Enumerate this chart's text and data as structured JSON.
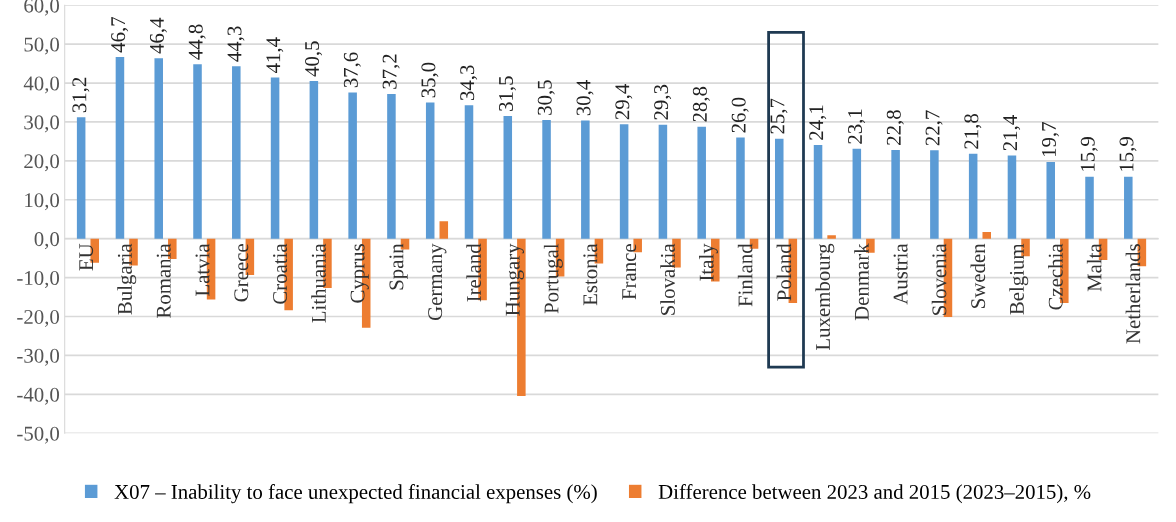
{
  "chart_data": {
    "type": "bar",
    "categories": [
      "EU",
      "Bulgaria",
      "Romania",
      "Latvia",
      "Greece",
      "Croatia",
      "Lithuania",
      "Cyprus",
      "Spain",
      "Germany",
      "Ireland",
      "Hungary",
      "Portugal",
      "Estonia",
      "France",
      "Slovakia",
      "Italy",
      "Finland",
      "Poland",
      "Luxembourg",
      "Denmark",
      "Austria",
      "Slovenia",
      "Sweden",
      "Belgium",
      "Czechia",
      "Malta",
      "Netherlands"
    ],
    "series": [
      {
        "name": "X07 – Inability to face unexpected financial expenses (%)",
        "color": "#5b9bd5",
        "values": [
          31.2,
          46.7,
          46.4,
          44.8,
          44.3,
          41.4,
          40.5,
          37.6,
          37.2,
          35.0,
          34.3,
          31.5,
          30.5,
          30.4,
          29.4,
          29.3,
          28.8,
          26.0,
          25.7,
          24.1,
          23.1,
          22.8,
          22.7,
          21.8,
          21.4,
          19.7,
          15.9,
          15.9
        ],
        "value_labels": [
          "31,2",
          "46,7",
          "46,4",
          "44,8",
          "44,3",
          "41,4",
          "40,5",
          "37,6",
          "37,2",
          "35,0",
          "34,3",
          "31,5",
          "30,5",
          "30,4",
          "29,4",
          "29,3",
          "28,8",
          "26,0",
          "25,7",
          "24,1",
          "23,1",
          "22,8",
          "22,7",
          "21,8",
          "21,4",
          "19,7",
          "15,9",
          "15,9"
        ]
      },
      {
        "name": "Difference between 2023 and 2015 (2023–2015), %",
        "color": "#ed7d31",
        "values": [
          -6.2,
          -6.9,
          -5.2,
          -15.6,
          -9.3,
          -18.4,
          -12.7,
          -22.9,
          -2.8,
          4.5,
          -15.8,
          -40.4,
          -9.7,
          -6.4,
          -3.5,
          -7.4,
          -11.0,
          -2.6,
          -16.5,
          0.9,
          -3.6,
          0,
          -20.1,
          1.7,
          -4.5,
          -16.5,
          -5.5,
          -7.1
        ]
      }
    ],
    "ylim": [
      -50,
      60
    ],
    "yticks": [
      {
        "value": -50,
        "label": "-50,0"
      },
      {
        "value": -40,
        "label": "-40,0"
      },
      {
        "value": -30,
        "label": "-30,0"
      },
      {
        "value": -20,
        "label": "-20,0"
      },
      {
        "value": -10,
        "label": "-10,0"
      },
      {
        "value": 0,
        "label": "0,0"
      },
      {
        "value": 10,
        "label": "10,0"
      },
      {
        "value": 20,
        "label": "20,0"
      },
      {
        "value": 30,
        "label": "30,0"
      },
      {
        "value": 40,
        "label": "40,0"
      },
      {
        "value": 50,
        "label": "50,0"
      },
      {
        "value": 60,
        "label": "60,0"
      }
    ],
    "grid": "y",
    "legend": "bottom"
  }
}
